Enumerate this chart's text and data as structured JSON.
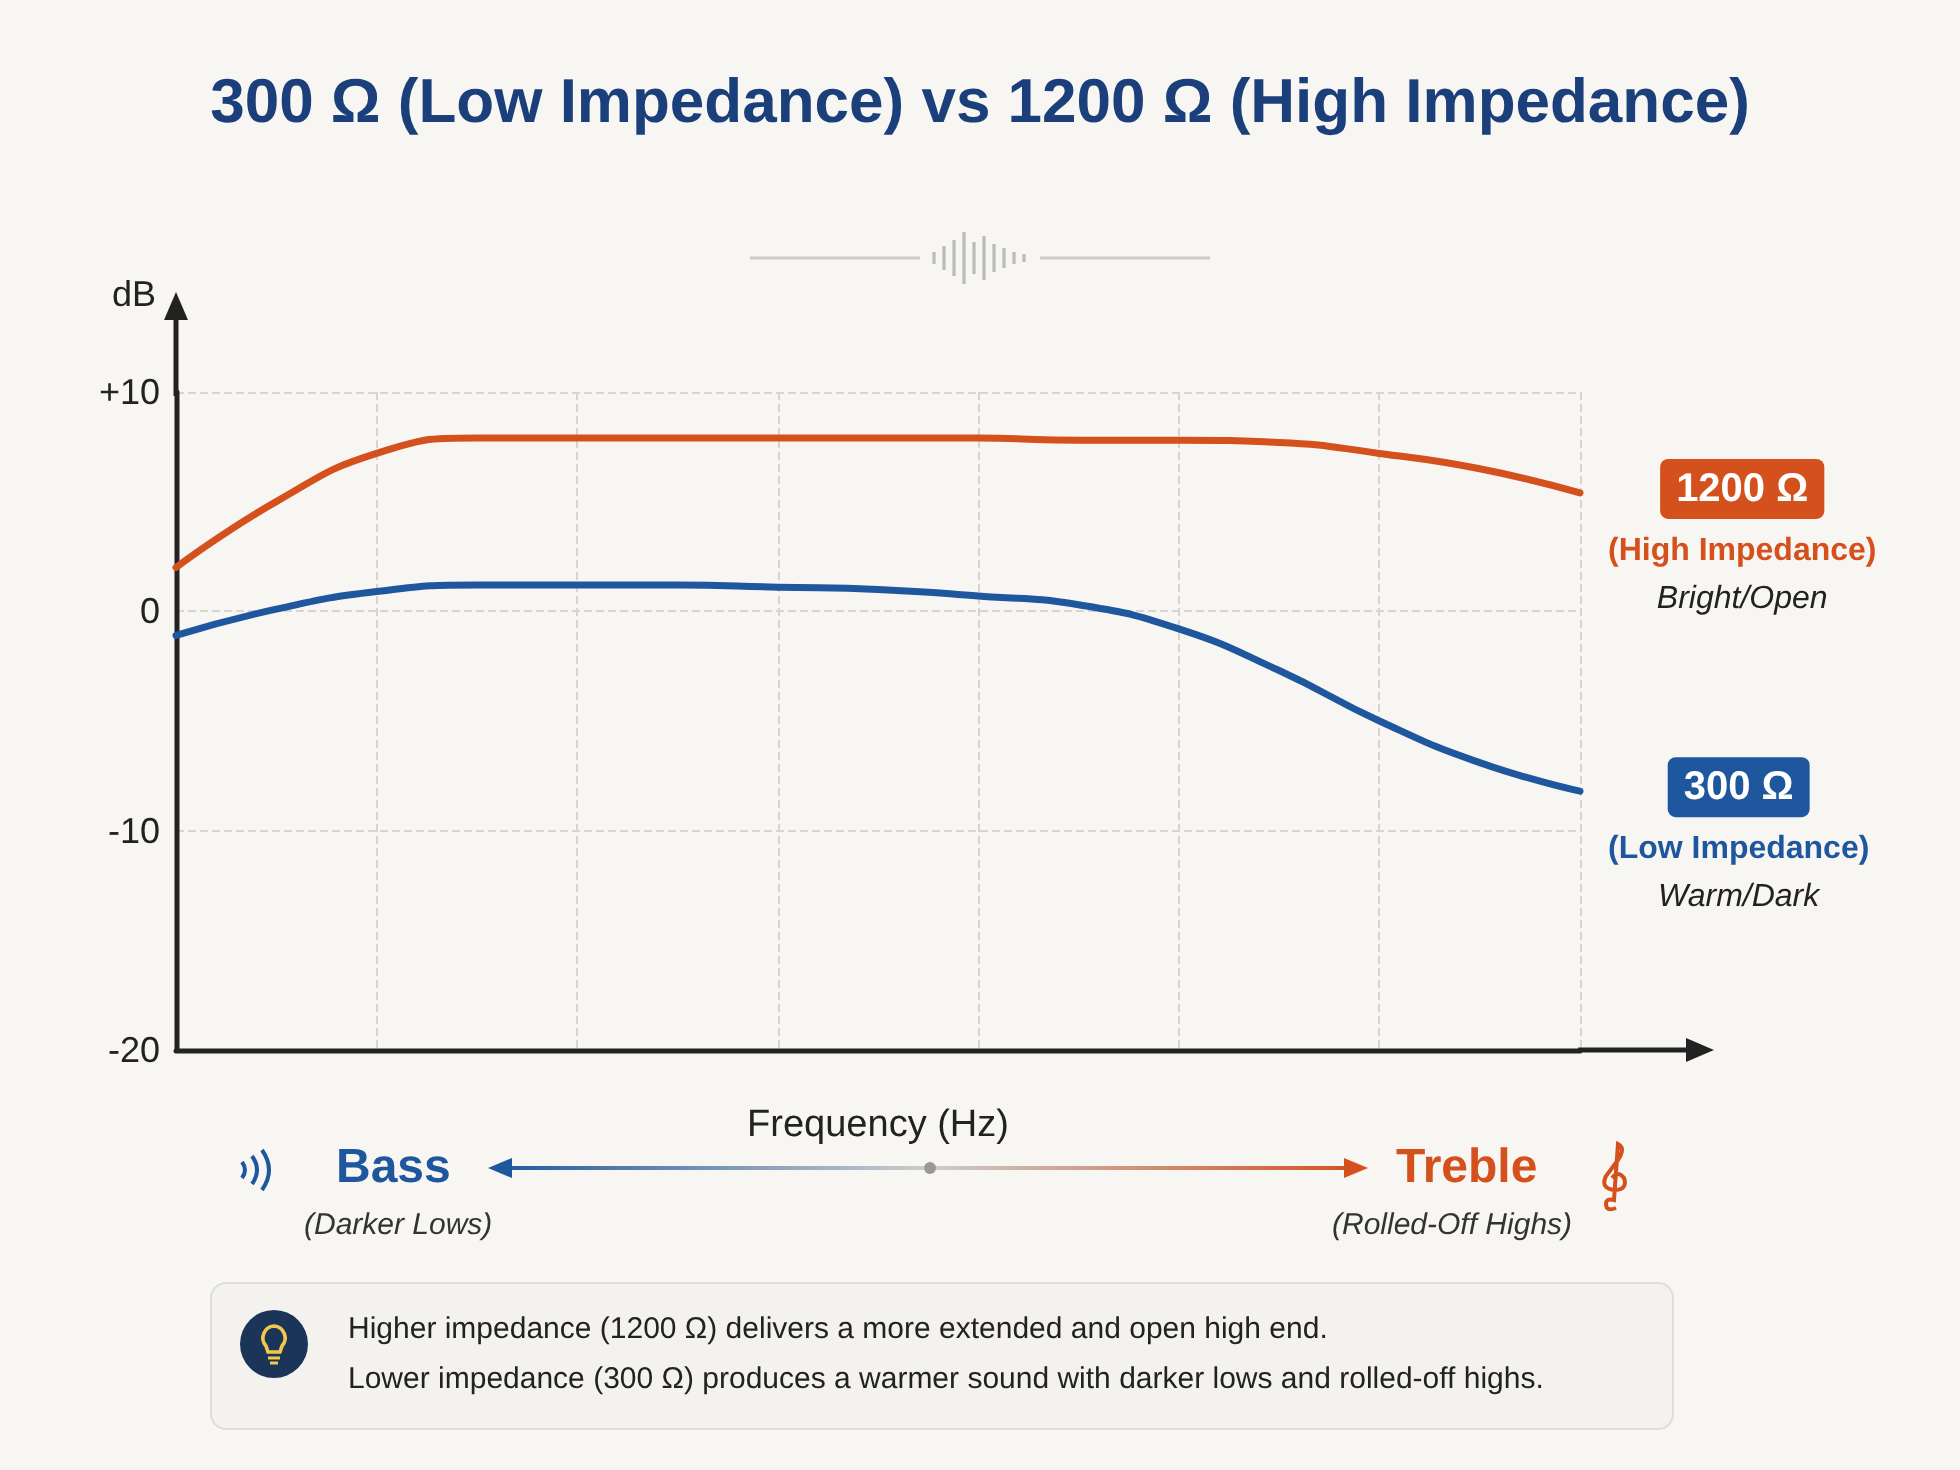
{
  "chart_data": {
    "type": "line",
    "title": "300 Ω (Low Impedance) vs 1200 Ω (High Impedance)",
    "xlabel": "Frequency (Hz)",
    "ylabel": "dB",
    "categories": [
      null,
      null,
      null,
      null,
      null,
      null,
      null,
      null,
      null,
      null,
      null,
      null,
      null,
      null,
      null
    ],
    "series": [
      {
        "name": "1200 Ω",
        "color": "#d4501c",
        "values": [
          2.0,
          5.0,
          7.2,
          7.9,
          7.9,
          7.9,
          7.9,
          7.9,
          7.9,
          7.8,
          7.8,
          7.7,
          7.2,
          6.5,
          5.4
        ]
      },
      {
        "name": "300 Ω",
        "color": "#1f579e",
        "values": [
          -1.1,
          0.1,
          0.9,
          1.2,
          1.2,
          1.2,
          1.1,
          1.0,
          0.7,
          0.3,
          -0.8,
          -2.7,
          -5.0,
          -6.9,
          -8.2
        ]
      }
    ],
    "ylim": [
      -20,
      10
    ],
    "yticks": [
      {
        "value": -20,
        "label": "-20"
      },
      {
        "value": -10,
        "label": "-10"
      },
      {
        "value": 0,
        "label": "0"
      },
      {
        "value": 10,
        "label": "+10"
      }
    ],
    "grid": true,
    "marker": "none",
    "line_style": "solid",
    "annotations": [
      "(High Impedance)",
      "Bright/Open",
      "(Low Impedance)",
      "Warm/Dark",
      "Bass",
      "(Darker Lows)",
      "Treble",
      "(Rolled-Off Highs)",
      "Higher impedance (1200 Ω) delivers a more extended and open high end.",
      "Lower impedance (300 Ω) produces a warmer sound with darker lows and rolled-off highs."
    ]
  }
}
